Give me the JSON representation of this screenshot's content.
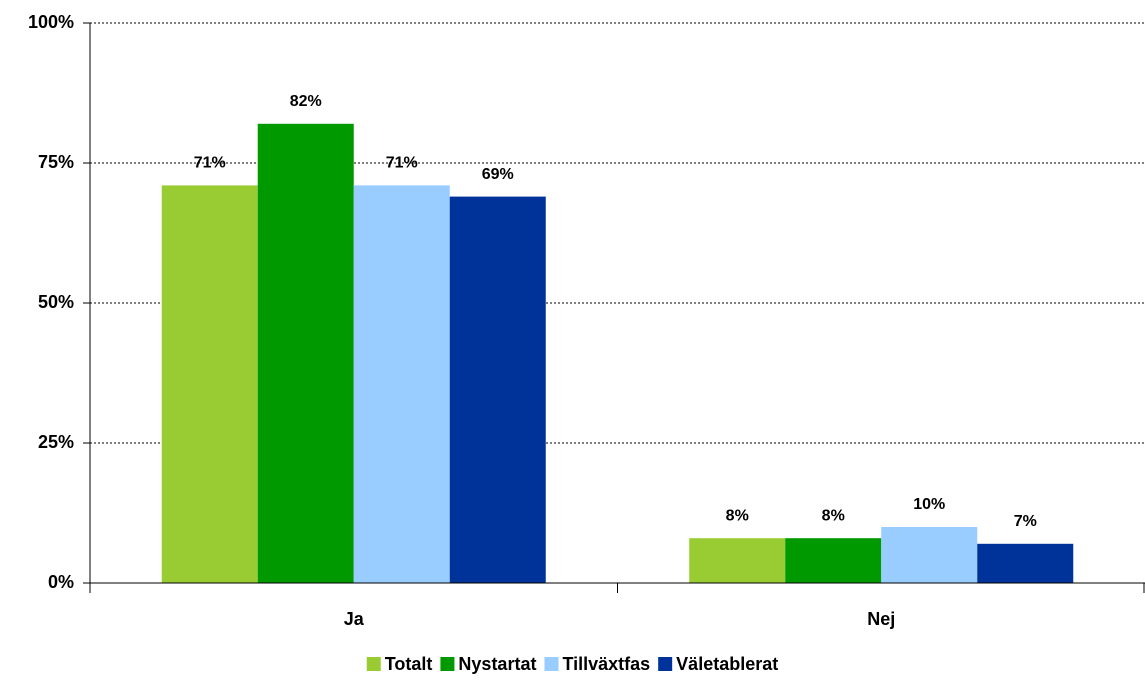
{
  "chart_data": {
    "type": "bar",
    "categories": [
      "Ja",
      "Nej"
    ],
    "series": [
      {
        "name": "Totalt",
        "color": "#99cc33",
        "values": [
          71,
          8
        ],
        "value_labels": [
          "71%",
          "8%"
        ]
      },
      {
        "name": "Nystartat",
        "color": "#009900",
        "values": [
          82,
          8
        ],
        "value_labels": [
          "82%",
          "8%"
        ]
      },
      {
        "name": "Tillväxtfas",
        "color": "#99ccff",
        "values": [
          71,
          10
        ],
        "value_labels": [
          "71%",
          "10%"
        ]
      },
      {
        "name": "Väletablerat",
        "color": "#003399",
        "values": [
          69,
          7
        ],
        "value_labels": [
          "69%",
          "7%"
        ]
      }
    ],
    "ylim": [
      0,
      100
    ],
    "yticks": [
      {
        "value": 0,
        "label": "0%"
      },
      {
        "value": 25,
        "label": "25%"
      },
      {
        "value": 50,
        "label": "50%"
      },
      {
        "value": 75,
        "label": "75%"
      },
      {
        "value": 100,
        "label": "100%"
      }
    ],
    "grid": true,
    "legend": "bottom"
  }
}
